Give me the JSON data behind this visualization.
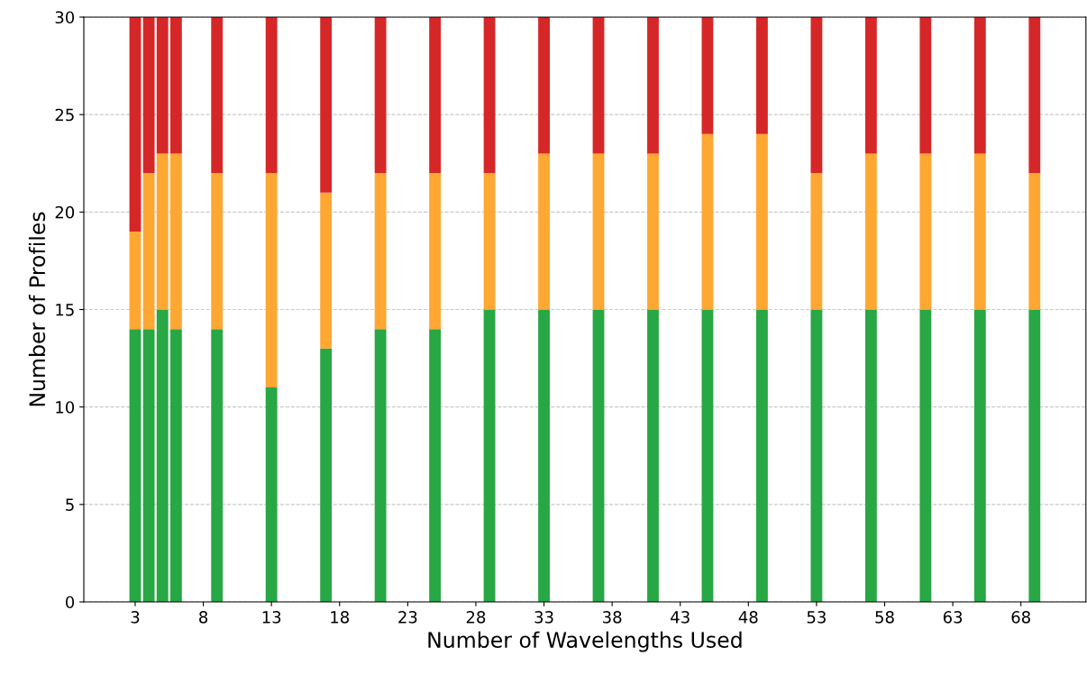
{
  "chart_data": {
    "type": "bar",
    "stacked": true,
    "xlabel": "Number of Wavelengths Used",
    "ylabel": "Number of Profiles",
    "x": [
      3,
      4,
      5,
      6,
      9,
      13,
      17,
      21,
      25,
      29,
      33,
      37,
      41,
      45,
      49,
      53,
      57,
      61,
      65,
      69
    ],
    "series": [
      {
        "color": "#28a745",
        "values": [
          14,
          14,
          15,
          14,
          14,
          11,
          13,
          14,
          14,
          15,
          15,
          15,
          15,
          15,
          15,
          15,
          15,
          15,
          15,
          15
        ]
      },
      {
        "color": "#ffa733",
        "values": [
          5,
          8,
          8,
          9,
          8,
          11,
          8,
          8,
          8,
          7,
          8,
          8,
          8,
          9,
          9,
          7,
          8,
          8,
          8,
          7
        ]
      },
      {
        "color": "#d62728",
        "values": [
          11,
          8,
          7,
          7,
          8,
          8,
          9,
          8,
          8,
          8,
          7,
          7,
          7,
          6,
          6,
          8,
          7,
          7,
          7,
          8
        ]
      }
    ],
    "xlim": [
      -0.77,
      72.77
    ],
    "xticks": [
      3,
      8,
      13,
      18,
      23,
      28,
      33,
      38,
      43,
      48,
      53,
      58,
      63,
      68
    ],
    "ylim": [
      0,
      30
    ],
    "yticks": [
      0,
      5,
      10,
      15,
      20,
      25,
      30
    ],
    "grid": "y"
  }
}
